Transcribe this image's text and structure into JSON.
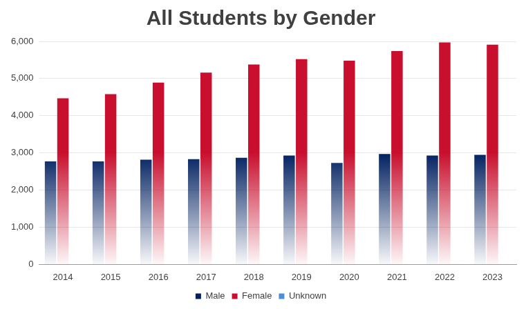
{
  "chart_data": {
    "type": "bar",
    "title": "All Students by Gender",
    "categories": [
      "2014",
      "2015",
      "2016",
      "2017",
      "2018",
      "2019",
      "2020",
      "2021",
      "2022",
      "2023"
    ],
    "series": [
      {
        "name": "Male",
        "color": "#002060",
        "values": [
          2770,
          2770,
          2820,
          2830,
          2870,
          2930,
          2730,
          2970,
          2930,
          2950
        ]
      },
      {
        "name": "Female",
        "color": "#c8102e",
        "values": [
          4470,
          4580,
          4890,
          5160,
          5380,
          5520,
          5480,
          5740,
          5970,
          5910
        ]
      },
      {
        "name": "Unknown",
        "color": "#4a8fd0",
        "values": [
          0,
          0,
          0,
          0,
          0,
          0,
          0,
          0,
          15,
          20
        ]
      }
    ],
    "ylim": [
      0,
      6000
    ],
    "yticks": [
      0,
      {
        "value": 1000,
        "label": "1,000"
      },
      {
        "value": 2000,
        "label": "2,000"
      },
      {
        "value": 3000,
        "label": "3,000"
      },
      {
        "value": 4000,
        "label": "4,000"
      },
      {
        "value": 5000,
        "label": "5,000"
      },
      {
        "value": 6000,
        "label": "6,000"
      }
    ],
    "grid": true,
    "legend": "bottom"
  }
}
